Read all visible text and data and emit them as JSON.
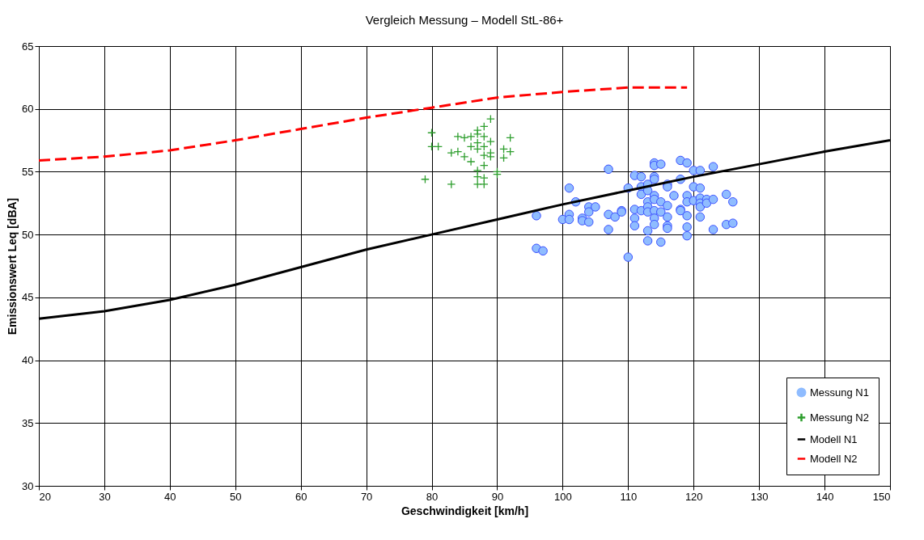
{
  "chart_data": {
    "type": "scatter",
    "title": "Vergleich Messung – Modell StL-86+",
    "xlabel": "Geschwindigkeit [km/h]",
    "ylabel": "Emissionswert Leq [dBA]",
    "xlim": [
      20,
      150
    ],
    "xticks": [
      20,
      30,
      40,
      50,
      60,
      70,
      80,
      90,
      100,
      110,
      120,
      130,
      140,
      150
    ],
    "ylim": [
      30,
      65
    ],
    "yticks": [
      30,
      35,
      40,
      45,
      50,
      55,
      60,
      65
    ],
    "grid": true,
    "legend": "bottom right",
    "series": [
      {
        "name": "Messung N1",
        "marker": "circle",
        "color": "#8fbcff",
        "x": [
          96,
          96,
          97,
          100,
          101,
          101,
          101,
          102,
          103,
          103,
          104,
          104,
          104,
          105,
          107,
          107,
          107,
          108,
          109,
          109,
          110,
          110,
          111,
          111,
          111,
          111,
          112,
          112,
          112,
          112,
          113,
          113,
          113,
          113,
          113,
          113,
          113,
          114,
          114,
          114,
          114,
          114,
          114,
          114,
          114,
          114,
          115,
          115,
          115,
          115,
          116,
          116,
          116,
          116,
          116,
          116,
          117,
          118,
          118,
          118,
          118,
          119,
          119,
          119,
          119,
          119,
          119,
          120,
          120,
          120,
          121,
          121,
          121,
          121,
          121,
          121,
          122,
          122,
          123,
          123,
          123,
          125,
          125,
          126,
          126
        ],
        "values": [
          51.5,
          48.9,
          48.7,
          51.2,
          53.7,
          51.6,
          51.2,
          52.6,
          51.3,
          51.1,
          52.2,
          51.0,
          51.8,
          52.2,
          55.2,
          51.6,
          50.4,
          51.4,
          51.9,
          51.8,
          53.7,
          48.2,
          54.7,
          52.0,
          51.3,
          50.7,
          54.6,
          53.8,
          53.2,
          51.9,
          54.0,
          53.5,
          52.6,
          52.2,
          51.8,
          50.3,
          49.5,
          55.7,
          55.5,
          54.6,
          54.4,
          53.1,
          52.8,
          51.9,
          51.3,
          50.8,
          55.6,
          52.6,
          51.8,
          49.4,
          54.0,
          53.8,
          52.3,
          51.4,
          50.7,
          50.5,
          53.1,
          55.9,
          54.4,
          52.0,
          51.9,
          55.7,
          53.1,
          52.6,
          51.5,
          50.6,
          49.9,
          55.1,
          53.8,
          52.7,
          55.1,
          53.7,
          52.9,
          52.5,
          52.2,
          51.4,
          52.8,
          52.5,
          55.4,
          52.8,
          50.4,
          53.2,
          50.8,
          52.6,
          50.9
        ]
      },
      {
        "name": "Messung N2",
        "marker": "cross",
        "color": "#2e9e2e",
        "x": [
          79,
          80,
          80,
          81,
          83,
          83,
          84,
          84,
          85,
          85,
          86,
          86,
          86,
          87,
          87,
          87,
          87,
          87,
          87,
          87,
          88,
          88,
          88,
          88,
          88,
          88,
          88,
          89,
          89,
          89,
          89,
          90,
          90,
          91,
          91,
          92,
          92
        ],
        "values": [
          54.4,
          58.1,
          57.0,
          57.0,
          56.5,
          54.0,
          57.8,
          56.6,
          57.7,
          56.2,
          57.8,
          57.0,
          55.8,
          58.3,
          58.0,
          57.3,
          56.8,
          55.1,
          54.6,
          54.0,
          58.6,
          57.8,
          57.0,
          56.3,
          55.5,
          54.5,
          54.0,
          59.2,
          57.4,
          56.5,
          56.2,
          55.0,
          54.8,
          56.8,
          56.1,
          57.7,
          56.6
        ]
      },
      {
        "name": "Modell N1",
        "type": "line",
        "marker": "none",
        "line_style": "solid",
        "color": "#000000",
        "x": [
          20,
          30,
          40,
          50,
          60,
          70,
          80,
          90,
          100,
          110,
          120,
          130,
          140,
          150
        ],
        "values": [
          43.3,
          43.9,
          44.8,
          46.0,
          47.4,
          48.8,
          50.0,
          51.2,
          52.4,
          53.5,
          54.6,
          55.6,
          56.6,
          57.5
        ]
      },
      {
        "name": "Modell N2",
        "type": "line",
        "marker": "none",
        "line_style": "dashed",
        "color": "#ff0000",
        "x": [
          20,
          30,
          40,
          50,
          60,
          70,
          80,
          90,
          100,
          110,
          119
        ],
        "values": [
          55.9,
          56.2,
          56.7,
          57.5,
          58.4,
          59.3,
          60.1,
          60.9,
          61.35,
          61.7,
          61.7
        ]
      }
    ]
  }
}
